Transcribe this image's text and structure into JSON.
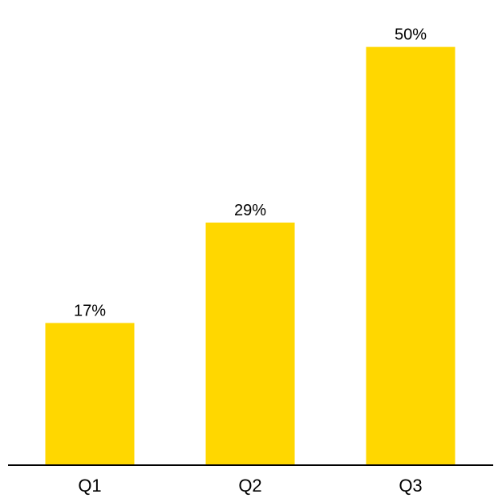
{
  "chart_data": {
    "type": "bar",
    "categories": [
      "Q1",
      "Q2",
      "Q3"
    ],
    "values": [
      17,
      29,
      50
    ],
    "data_labels": [
      "17%",
      "29%",
      "50%"
    ],
    "title": "",
    "xlabel": "",
    "ylabel": "",
    "ylim": [
      0,
      53.6
    ],
    "grid": false,
    "legend": "none",
    "bar_color": "#FFD700",
    "axis_color": "#000000"
  }
}
